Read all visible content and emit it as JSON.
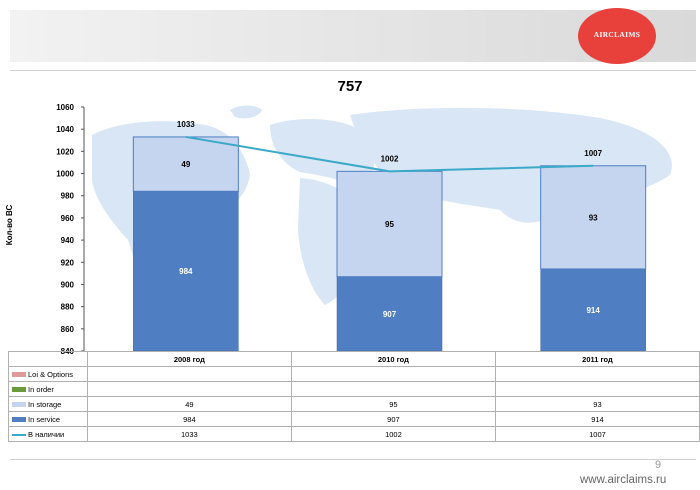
{
  "logo": {
    "text": "AIRCLAIMS",
    "color": "#e8403a"
  },
  "chart_data": {
    "type": "bar",
    "title": "757",
    "ylabel": "Кол-во ВС",
    "ylim": [
      840,
      1060
    ],
    "yticks": [
      840,
      860,
      880,
      900,
      920,
      940,
      960,
      980,
      1000,
      1020,
      1040,
      1060
    ],
    "categories": [
      "2008 год",
      "2010 год",
      "2011 год"
    ],
    "series": [
      {
        "name": "Loi & Options",
        "values": [
          null,
          null,
          null
        ],
        "color": "#e09a9a"
      },
      {
        "name": "In order",
        "values": [
          null,
          null,
          null
        ],
        "color": "#6a9a3a"
      },
      {
        "name": "In storage",
        "values": [
          49,
          95,
          93
        ],
        "color": "#c5d5ef"
      },
      {
        "name": "In service",
        "values": [
          984,
          907,
          914
        ],
        "color": "#4f7fc2"
      },
      {
        "name": "В наличии",
        "values": [
          1033,
          1002,
          1007
        ],
        "color": "#3aaac8",
        "kind": "line"
      }
    ],
    "legend": "table-below",
    "grid": false
  },
  "footer": {
    "page": "9",
    "url": "www.airclaims.ru"
  }
}
